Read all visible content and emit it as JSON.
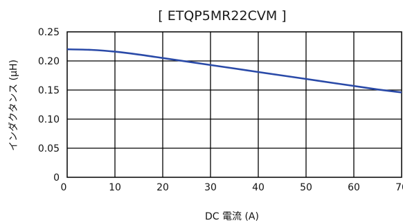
{
  "chart_data": {
    "type": "line",
    "title": "[ ETQP5MR22CVM ]",
    "xlabel": "DC 電流 (A)",
    "ylabel": "インダクタンス (μH)",
    "xlim": [
      0,
      70
    ],
    "ylim": [
      0,
      0.25
    ],
    "xticks": [
      0,
      10,
      20,
      30,
      40,
      50,
      60,
      70
    ],
    "xtick_labels": [
      "0",
      "10",
      "20",
      "30",
      "40",
      "50",
      "60",
      "70"
    ],
    "yticks": [
      0,
      0.05,
      0.1,
      0.15,
      0.2,
      0.25
    ],
    "ytick_labels": [
      "0",
      "0.05",
      "0.10",
      "0.15",
      "0.20",
      "0.25"
    ],
    "grid": true,
    "series": [
      {
        "color": "#2a4aa8",
        "x": [
          0,
          5,
          10,
          15,
          20,
          25,
          30,
          35,
          40,
          45,
          50,
          55,
          60,
          65,
          70
        ],
        "y": [
          0.22,
          0.219,
          0.216,
          0.211,
          0.205,
          0.199,
          0.193,
          0.187,
          0.181,
          0.175,
          0.169,
          0.163,
          0.157,
          0.151,
          0.146
        ]
      }
    ]
  }
}
